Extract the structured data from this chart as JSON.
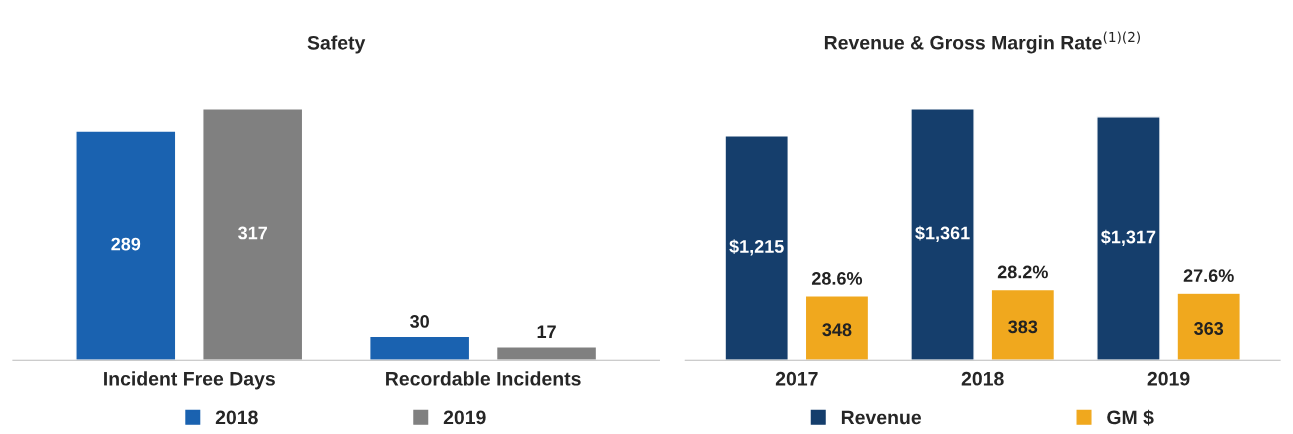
{
  "chart_data": [
    {
      "type": "bar",
      "title": "Safety",
      "categories": [
        "Incident Free Days",
        "Recordable Incidents"
      ],
      "series": [
        {
          "name": "2018",
          "color": "#1a62b0",
          "values": [
            289,
            30
          ]
        },
        {
          "name": "2019",
          "color": "#808080",
          "values": [
            317,
            17
          ]
        }
      ],
      "data_labels": true,
      "legend": "bottom",
      "grid": false
    },
    {
      "type": "bar",
      "title": "Revenue & Gross Margin Rate$^{(1)(2)}$",
      "categories": [
        "2017",
        "2018",
        "2019"
      ],
      "series": [
        {
          "name": "Revenue",
          "color": "#153e6c",
          "values": [
            1215,
            1361,
            1317
          ],
          "value_labels": [
            "$1,215",
            "$1,361",
            "$1,317"
          ]
        },
        {
          "name": "GM $",
          "color": "#f0a81e",
          "values": [
            348,
            383,
            363
          ]
        }
      ],
      "annotations": [
        "28.6%",
        "28.2%",
        "27.6%"
      ],
      "data_labels": true,
      "legend": "bottom",
      "grid": false
    }
  ]
}
